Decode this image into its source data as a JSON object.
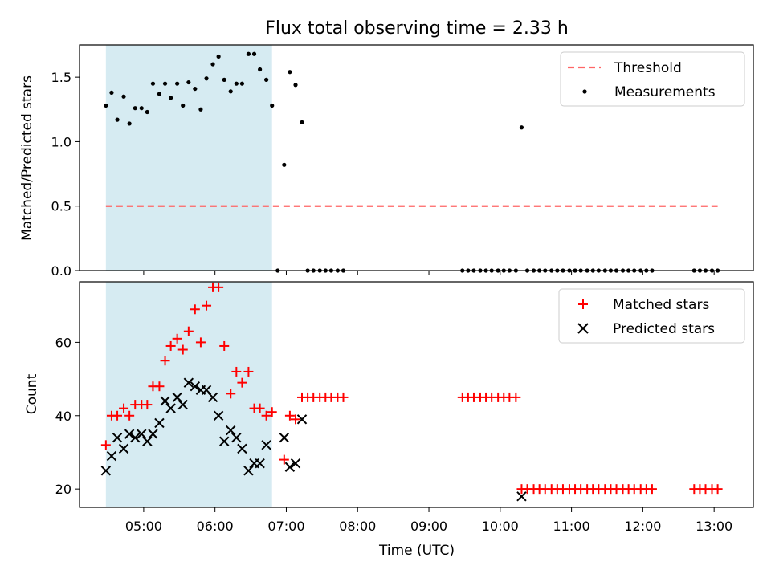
{
  "chart_data": [
    {
      "type": "scatter",
      "title": "Flux total observing time = 2.33 h",
      "xlabel": "",
      "ylabel": "Matched/Predicted stars",
      "xlim": [
        4.1,
        13.55
      ],
      "ylim": [
        0,
        1.75
      ],
      "yticks": [
        0,
        0.5,
        1.0,
        1.5
      ],
      "ytick_labels": [
        "0.0",
        "0.5",
        "1.0",
        "1.5"
      ],
      "shaded_interval": [
        4.47,
        6.8
      ],
      "shade_color": "#add8e6",
      "legend": {
        "position": "top-right",
        "entries": [
          "Threshold",
          "Measurements"
        ]
      },
      "series": [
        {
          "name": "Threshold",
          "kind": "hline",
          "value": 0.5,
          "x_range": [
            4.47,
            13.05
          ],
          "color": "#ff6666"
        },
        {
          "name": "Measurements",
          "kind": "points",
          "color": "#000000",
          "x": [
            4.47,
            4.55,
            4.63,
            4.72,
            4.8,
            4.88,
            4.97,
            5.05,
            5.13,
            5.22,
            5.3,
            5.38,
            5.47,
            5.55,
            5.63,
            5.72,
            5.8,
            5.88,
            5.97,
            6.05,
            6.13,
            6.22,
            6.3,
            6.38,
            6.47,
            6.55,
            6.63,
            6.72,
            6.8,
            6.88,
            6.97,
            7.05,
            7.13,
            7.22,
            7.3,
            7.38,
            7.47,
            7.55,
            7.63,
            7.72,
            7.8,
            9.47,
            9.55,
            9.63,
            9.72,
            9.8,
            9.88,
            9.97,
            10.05,
            10.13,
            10.22,
            10.3,
            10.38,
            10.47,
            10.55,
            10.63,
            10.72,
            10.8,
            10.88,
            10.97,
            11.05,
            11.13,
            11.22,
            11.3,
            11.38,
            11.47,
            11.55,
            11.63,
            11.72,
            11.8,
            11.88,
            11.97,
            12.05,
            12.13,
            12.72,
            12.8,
            12.88,
            12.97,
            13.05
          ],
          "y": [
            1.28,
            1.38,
            1.17,
            1.35,
            1.14,
            1.26,
            1.26,
            1.23,
            1.45,
            1.37,
            1.45,
            1.34,
            1.45,
            1.28,
            1.46,
            1.41,
            1.25,
            1.49,
            1.6,
            1.66,
            1.48,
            1.39,
            1.45,
            1.45,
            1.68,
            1.68,
            1.56,
            1.48,
            1.28,
            0.0,
            0.82,
            1.54,
            1.44,
            1.15,
            0,
            0,
            0,
            0,
            0,
            0,
            0,
            0,
            0,
            0,
            0,
            0,
            0,
            0,
            0,
            0,
            0,
            1.11,
            0,
            0,
            0,
            0,
            0,
            0,
            0,
            0,
            0,
            0,
            0,
            0,
            0,
            0,
            0,
            0,
            0,
            0,
            0,
            0,
            0,
            0,
            0,
            0,
            0,
            0,
            0
          ]
        }
      ]
    },
    {
      "type": "scatter",
      "title": "",
      "xlabel": "Time (UTC)",
      "ylabel": "Count",
      "xlim": [
        4.1,
        13.55
      ],
      "ylim": [
        15,
        76.5
      ],
      "yticks": [
        20,
        40,
        60
      ],
      "ytick_labels": [
        "20",
        "40",
        "60"
      ],
      "xticks": [
        5,
        6,
        7,
        8,
        9,
        10,
        11,
        12,
        13
      ],
      "xtick_labels": [
        "05:00",
        "06:00",
        "07:00",
        "08:00",
        "09:00",
        "10:00",
        "11:00",
        "12:00",
        "13:00"
      ],
      "shaded_interval": [
        4.47,
        6.8
      ],
      "shade_color": "#add8e6",
      "legend": {
        "position": "top-right",
        "entries": [
          "Matched stars",
          "Predicted stars"
        ]
      },
      "series": [
        {
          "name": "Matched stars",
          "marker": "+",
          "color": "#ff0000",
          "x": [
            4.47,
            4.55,
            4.63,
            4.72,
            4.8,
            4.88,
            4.97,
            5.05,
            5.13,
            5.22,
            5.3,
            5.38,
            5.47,
            5.55,
            5.63,
            5.72,
            5.8,
            5.88,
            5.97,
            6.05,
            6.13,
            6.22,
            6.3,
            6.38,
            6.47,
            6.55,
            6.63,
            6.72,
            6.8,
            6.97,
            7.05,
            7.13,
            7.22,
            7.3,
            7.38,
            7.47,
            7.55,
            7.63,
            7.72,
            7.8,
            9.47,
            9.55,
            9.63,
            9.72,
            9.8,
            9.88,
            9.97,
            10.05,
            10.13,
            10.22,
            10.3,
            10.38,
            10.47,
            10.55,
            10.63,
            10.72,
            10.8,
            10.88,
            10.97,
            11.05,
            11.13,
            11.22,
            11.3,
            11.38,
            11.47,
            11.55,
            11.63,
            11.72,
            11.8,
            11.88,
            11.97,
            12.05,
            12.13,
            12.72,
            12.8,
            12.88,
            12.97,
            13.05
          ],
          "y": [
            32,
            40,
            40,
            42,
            40,
            43,
            43,
            43,
            48,
            48,
            55,
            59,
            61,
            58,
            63,
            69,
            60,
            70,
            75,
            75,
            59,
            46,
            52,
            49,
            52,
            42,
            42,
            40,
            41,
            28,
            40,
            39,
            45,
            45,
            45,
            45,
            45,
            45,
            45,
            45,
            45,
            45,
            45,
            45,
            45,
            45,
            45,
            45,
            45,
            45,
            20,
            20,
            20,
            20,
            20,
            20,
            20,
            20,
            20,
            20,
            20,
            20,
            20,
            20,
            20,
            20,
            20,
            20,
            20,
            20,
            20,
            20,
            20,
            20,
            20,
            20,
            20,
            20
          ]
        },
        {
          "name": "Predicted stars",
          "marker": "x",
          "color": "#000000",
          "x": [
            4.47,
            4.55,
            4.63,
            4.72,
            4.8,
            4.88,
            4.97,
            5.05,
            5.13,
            5.22,
            5.3,
            5.38,
            5.47,
            5.55,
            5.63,
            5.72,
            5.8,
            5.88,
            5.97,
            6.05,
            6.13,
            6.22,
            6.3,
            6.38,
            6.47,
            6.55,
            6.63,
            6.72,
            6.97,
            7.05,
            7.13,
            7.22,
            10.3
          ],
          "y": [
            25,
            29,
            34,
            31,
            35,
            34,
            35,
            33,
            35,
            38,
            44,
            42,
            45,
            43,
            49,
            48,
            47,
            47,
            45,
            40,
            33,
            36,
            34,
            31,
            25,
            27,
            27,
            32,
            34,
            26,
            27,
            39,
            18
          ]
        }
      ]
    }
  ]
}
